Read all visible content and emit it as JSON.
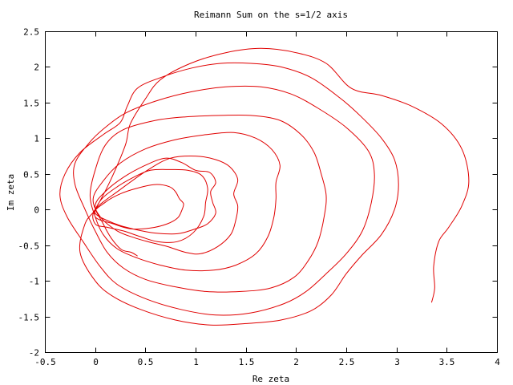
{
  "chart_data": {
    "type": "line",
    "title": "Reimann Sum on the s=1/2 axis",
    "xlabel": "Re zeta",
    "ylabel": "Im zeta",
    "xlim": [
      -0.5,
      4
    ],
    "ylim": [
      -2,
      2.5
    ],
    "x_ticks": [
      "-0.5",
      "0",
      "0.5",
      "1",
      "1.5",
      "2",
      "2.5",
      "3",
      "3.5",
      "4"
    ],
    "y_ticks": [
      "-2",
      "-1.5",
      "-1",
      "-0.5",
      "0",
      "0.5",
      "1",
      "1.5",
      "2",
      "2.5"
    ],
    "grid": false,
    "line_color": "#e00000",
    "series": [
      {
        "points": [
          [
            0.42,
            -0.65
          ],
          [
            0.36,
            -0.6
          ],
          [
            0.26,
            -0.56
          ],
          [
            0.16,
            -0.4
          ],
          [
            0.08,
            -0.2
          ],
          [
            0.0,
            0.05
          ],
          [
            0.1,
            0.25
          ],
          [
            0.28,
            0.45
          ],
          [
            0.5,
            0.62
          ],
          [
            0.7,
            0.72
          ],
          [
            0.86,
            0.66
          ],
          [
            1.0,
            0.55
          ],
          [
            1.14,
            0.52
          ],
          [
            1.2,
            0.38
          ],
          [
            1.15,
            0.25
          ],
          [
            1.17,
            0.1
          ],
          [
            1.2,
            -0.05
          ],
          [
            1.12,
            -0.2
          ],
          [
            0.98,
            -0.28
          ],
          [
            0.82,
            -0.34
          ],
          [
            0.6,
            -0.33
          ],
          [
            0.4,
            -0.28
          ],
          [
            0.2,
            -0.2
          ],
          [
            0.0,
            -0.05
          ],
          [
            0.1,
            0.1
          ],
          [
            0.25,
            0.22
          ],
          [
            0.42,
            0.3
          ],
          [
            0.6,
            0.35
          ],
          [
            0.74,
            0.32
          ],
          [
            0.8,
            0.25
          ],
          [
            0.84,
            0.15
          ],
          [
            0.88,
            0.08
          ],
          [
            0.86,
            -0.02
          ],
          [
            0.82,
            -0.12
          ],
          [
            0.72,
            -0.2
          ],
          [
            0.55,
            -0.26
          ],
          [
            0.35,
            -0.27
          ],
          [
            0.18,
            -0.2
          ],
          [
            0.0,
            -0.1
          ],
          [
            0.05,
            0.12
          ],
          [
            0.2,
            0.3
          ],
          [
            0.38,
            0.45
          ],
          [
            0.55,
            0.55
          ],
          [
            0.75,
            0.56
          ],
          [
            0.92,
            0.55
          ],
          [
            1.06,
            0.48
          ],
          [
            1.12,
            0.3
          ],
          [
            1.1,
            0.1
          ],
          [
            1.08,
            -0.1
          ],
          [
            0.98,
            -0.32
          ],
          [
            0.82,
            -0.45
          ],
          [
            0.62,
            -0.45
          ],
          [
            0.45,
            -0.38
          ],
          [
            0.28,
            -0.3
          ],
          [
            0.12,
            -0.25
          ],
          [
            0.0,
            -0.2
          ],
          [
            0.0,
            0.0
          ],
          [
            0.25,
            0.28
          ],
          [
            0.52,
            0.55
          ],
          [
            0.75,
            0.72
          ],
          [
            1.0,
            0.75
          ],
          [
            1.2,
            0.7
          ],
          [
            1.34,
            0.6
          ],
          [
            1.42,
            0.42
          ],
          [
            1.38,
            0.22
          ],
          [
            1.42,
            0.05
          ],
          [
            1.4,
            -0.15
          ],
          [
            1.35,
            -0.35
          ],
          [
            1.22,
            -0.52
          ],
          [
            1.05,
            -0.62
          ],
          [
            0.9,
            -0.6
          ],
          [
            0.72,
            -0.52
          ],
          [
            0.55,
            -0.46
          ],
          [
            0.4,
            -0.4
          ],
          [
            0.22,
            -0.3
          ],
          [
            0.05,
            -0.1
          ],
          [
            -0.02,
            0.15
          ],
          [
            0.08,
            0.4
          ],
          [
            0.25,
            0.65
          ],
          [
            0.5,
            0.85
          ],
          [
            0.8,
            0.98
          ],
          [
            1.1,
            1.05
          ],
          [
            1.38,
            1.08
          ],
          [
            1.6,
            1.0
          ],
          [
            1.76,
            0.84
          ],
          [
            1.84,
            0.62
          ],
          [
            1.8,
            0.38
          ],
          [
            1.8,
            0.15
          ],
          [
            1.78,
            -0.1
          ],
          [
            1.72,
            -0.38
          ],
          [
            1.6,
            -0.62
          ],
          [
            1.4,
            -0.78
          ],
          [
            1.18,
            -0.85
          ],
          [
            0.9,
            -0.85
          ],
          [
            0.65,
            -0.78
          ],
          [
            0.42,
            -0.68
          ],
          [
            0.22,
            -0.55
          ],
          [
            0.08,
            -0.35
          ],
          [
            0.0,
            -0.1
          ],
          [
            -0.05,
            0.2
          ],
          [
            0.0,
            0.55
          ],
          [
            0.1,
            0.9
          ],
          [
            0.28,
            1.12
          ],
          [
            0.6,
            1.25
          ],
          [
            0.9,
            1.3
          ],
          [
            1.25,
            1.32
          ],
          [
            1.55,
            1.32
          ],
          [
            1.84,
            1.25
          ],
          [
            2.05,
            1.05
          ],
          [
            2.18,
            0.8
          ],
          [
            2.25,
            0.5
          ],
          [
            2.3,
            0.2
          ],
          [
            2.28,
            -0.1
          ],
          [
            2.22,
            -0.45
          ],
          [
            2.12,
            -0.72
          ],
          [
            1.98,
            -0.95
          ],
          [
            1.75,
            -1.1
          ],
          [
            1.45,
            -1.15
          ],
          [
            1.1,
            -1.15
          ],
          [
            0.78,
            -1.08
          ],
          [
            0.5,
            -0.98
          ],
          [
            0.28,
            -0.82
          ],
          [
            0.12,
            -0.6
          ],
          [
            0.0,
            -0.3
          ],
          [
            -0.1,
            0.0
          ],
          [
            -0.2,
            0.35
          ],
          [
            -0.2,
            0.65
          ],
          [
            -0.05,
            0.95
          ],
          [
            0.1,
            1.15
          ],
          [
            0.3,
            1.35
          ],
          [
            0.6,
            1.52
          ],
          [
            0.95,
            1.65
          ],
          [
            1.3,
            1.72
          ],
          [
            1.65,
            1.72
          ],
          [
            1.95,
            1.62
          ],
          [
            2.22,
            1.42
          ],
          [
            2.5,
            1.15
          ],
          [
            2.72,
            0.82
          ],
          [
            2.78,
            0.5
          ],
          [
            2.75,
            0.1
          ],
          [
            2.66,
            -0.3
          ],
          [
            2.5,
            -0.62
          ],
          [
            2.3,
            -0.9
          ],
          [
            2.1,
            -1.15
          ],
          [
            1.88,
            -1.32
          ],
          [
            1.55,
            -1.45
          ],
          [
            1.2,
            -1.48
          ],
          [
            0.85,
            -1.4
          ],
          [
            0.5,
            -1.25
          ],
          [
            0.22,
            -1.05
          ],
          [
            0.05,
            -0.8
          ],
          [
            -0.12,
            -0.45
          ],
          [
            -0.28,
            -0.1
          ],
          [
            -0.35,
            0.2
          ],
          [
            -0.3,
            0.5
          ],
          [
            -0.15,
            0.8
          ],
          [
            0.08,
            1.05
          ],
          [
            0.25,
            1.22
          ],
          [
            0.32,
            1.45
          ],
          [
            0.42,
            1.7
          ],
          [
            0.65,
            1.85
          ],
          [
            0.95,
            1.98
          ],
          [
            1.25,
            2.05
          ],
          [
            1.55,
            2.05
          ],
          [
            1.85,
            2.0
          ],
          [
            2.15,
            1.85
          ],
          [
            2.45,
            1.55
          ],
          [
            2.65,
            1.3
          ],
          [
            2.85,
            1.0
          ],
          [
            2.98,
            0.7
          ],
          [
            3.02,
            0.35
          ],
          [
            2.98,
            0.0
          ],
          [
            2.85,
            -0.35
          ],
          [
            2.65,
            -0.65
          ],
          [
            2.5,
            -0.9
          ],
          [
            2.35,
            -1.2
          ],
          [
            2.15,
            -1.42
          ],
          [
            1.85,
            -1.55
          ],
          [
            1.5,
            -1.6
          ],
          [
            1.15,
            -1.62
          ],
          [
            0.8,
            -1.55
          ],
          [
            0.45,
            -1.4
          ],
          [
            0.18,
            -1.22
          ],
          [
            0.0,
            -1.0
          ],
          [
            -0.15,
            -0.6
          ],
          [
            -0.1,
            -0.2
          ],
          [
            0.0,
            0.0
          ],
          [
            0.15,
            0.4
          ],
          [
            0.3,
            0.9
          ],
          [
            0.35,
            1.2
          ],
          [
            0.5,
            1.55
          ],
          [
            0.65,
            1.82
          ],
          [
            0.95,
            2.05
          ],
          [
            1.3,
            2.2
          ],
          [
            1.65,
            2.26
          ],
          [
            2.0,
            2.2
          ],
          [
            2.3,
            2.05
          ],
          [
            2.55,
            1.7
          ],
          [
            2.85,
            1.6
          ],
          [
            3.15,
            1.45
          ],
          [
            3.45,
            1.2
          ],
          [
            3.65,
            0.85
          ],
          [
            3.72,
            0.4
          ],
          [
            3.65,
            0.05
          ],
          [
            3.52,
            -0.25
          ],
          [
            3.42,
            -0.45
          ],
          [
            3.37,
            -0.8
          ],
          [
            3.38,
            -1.1
          ],
          [
            3.35,
            -1.3
          ]
        ]
      }
    ]
  }
}
